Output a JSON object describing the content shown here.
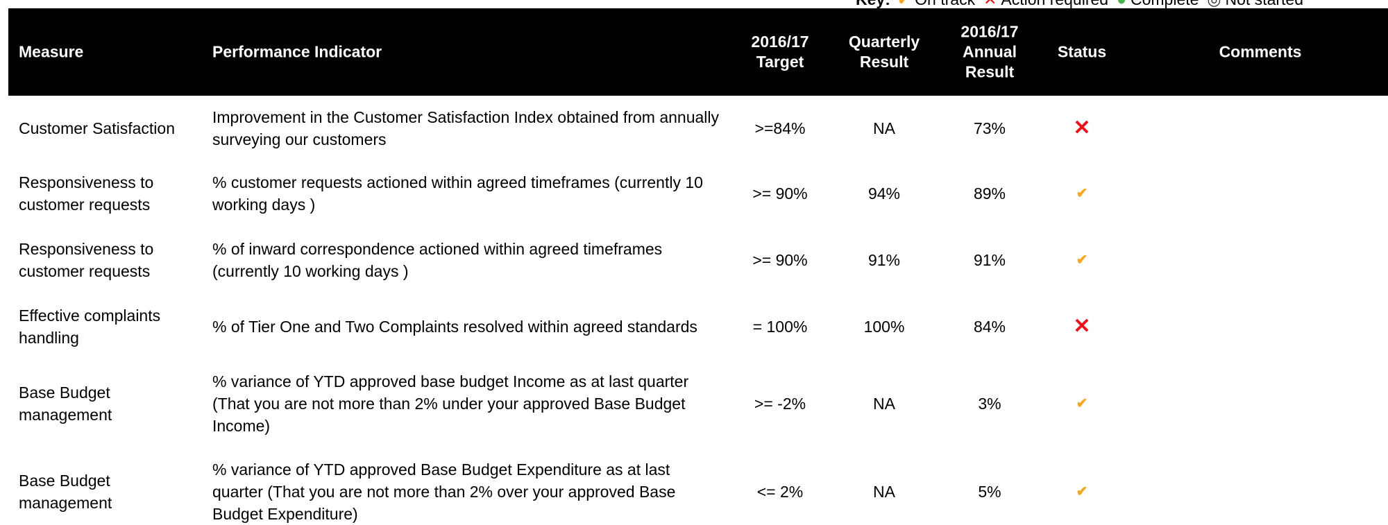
{
  "key": {
    "title": "Key:",
    "items": [
      "On track",
      "Action required",
      "Complete",
      "Not started"
    ]
  },
  "table": {
    "columns": [
      [
        "Measure"
      ],
      [
        "Performance Indicator"
      ],
      [
        "2016/17",
        "Target"
      ],
      [
        "Quarterly",
        "Result"
      ],
      [
        "2016/17",
        "Annual",
        "Result"
      ],
      [
        "Status"
      ],
      [
        "Comments"
      ]
    ],
    "rows": [
      {
        "measure": "Customer Satisfaction",
        "indicator": "Improvement in the Customer Satisfaction Index obtained from annually surveying our customers",
        "target": ">=84%",
        "quarterly": "NA",
        "annual": "73%",
        "status": "Action required"
      },
      {
        "measure": "Responsiveness to customer requests",
        "indicator": "% customer requests actioned within agreed timeframes (currently 10 working days )",
        "target": ">= 90%",
        "quarterly": "94%",
        "annual": "89%",
        "status": "On track"
      },
      {
        "measure": "Responsiveness to customer requests",
        "indicator": "% of inward correspondence actioned within agreed timeframes (currently 10 working days )",
        "target": ">= 90%",
        "quarterly": "91%",
        "annual": "91%",
        "status": "On track"
      },
      {
        "measure": "Effective complaints handling",
        "indicator": "% of Tier One and Two Complaints resolved within agreed standards",
        "target": "= 100%",
        "quarterly": "100%",
        "annual": "84%",
        "status": "Action required"
      },
      {
        "measure": "Base Budget management",
        "indicator": "% variance of YTD approved base budget Income as at last quarter (That you are not more than 2% under your approved Base Budget Income)",
        "target": ">= -2%",
        "quarterly": "NA",
        "annual": "3%",
        "status": "On track"
      },
      {
        "measure": "Base Budget management",
        "indicator": "% variance of YTD approved Base Budget  Expenditure as at last quarter (That you are not more than 2% over your approved Base Budget Expenditure)",
        "target": "<= 2%",
        "quarterly": "NA",
        "annual": "5%",
        "status": "On track"
      }
    ]
  }
}
